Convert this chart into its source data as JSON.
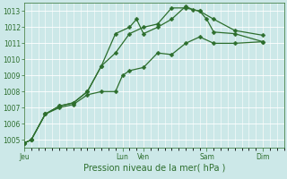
{
  "title": "Pression niveau de la mer( hPa )",
  "bg_color": "#cce8e8",
  "grid_color": "#ffffff",
  "line_color": "#2d6e2d",
  "ylim": [
    1004.5,
    1013.5
  ],
  "yticks": [
    1005,
    1006,
    1007,
    1008,
    1009,
    1010,
    1011,
    1012,
    1013
  ],
  "xtick_labels": [
    "Jeu",
    "Lun",
    "Ven",
    "Sam",
    "Dim"
  ],
  "xtick_positions": [
    0,
    14,
    17,
    26,
    34
  ],
  "xlim": [
    0,
    37
  ],
  "line1_x": [
    0,
    1,
    3,
    5,
    7,
    9,
    11,
    13,
    14,
    15,
    17,
    19,
    21,
    23,
    25,
    27,
    30,
    34
  ],
  "line1_y": [
    1004.8,
    1005.0,
    1006.6,
    1007.0,
    1007.2,
    1007.8,
    1008.0,
    1008.0,
    1009.0,
    1009.3,
    1009.5,
    1010.4,
    1010.3,
    1011.0,
    1011.4,
    1011.0,
    1011.0,
    1011.1
  ],
  "line2_x": [
    0,
    1,
    3,
    5,
    7,
    9,
    11,
    13,
    15,
    17,
    19,
    21,
    23,
    25,
    27,
    30,
    34
  ],
  "line2_y": [
    1004.8,
    1005.0,
    1006.6,
    1007.1,
    1007.3,
    1008.0,
    1009.6,
    1010.4,
    1011.6,
    1012.0,
    1012.2,
    1013.2,
    1013.2,
    1013.0,
    1012.5,
    1011.8,
    1011.5
  ],
  "line3_x": [
    0,
    1,
    3,
    5,
    7,
    9,
    11,
    13,
    15,
    16,
    17,
    19,
    21,
    23,
    24,
    25,
    26,
    27,
    30,
    34
  ],
  "line3_y": [
    1004.8,
    1005.0,
    1006.6,
    1007.1,
    1007.3,
    1008.0,
    1009.6,
    1011.6,
    1012.0,
    1012.5,
    1011.6,
    1012.0,
    1012.5,
    1013.3,
    1013.1,
    1013.0,
    1012.5,
    1011.7,
    1011.6,
    1011.1
  ],
  "ylabel_fontsize": 5.5,
  "xlabel_fontsize": 7,
  "tick_fontsize": 5.5
}
